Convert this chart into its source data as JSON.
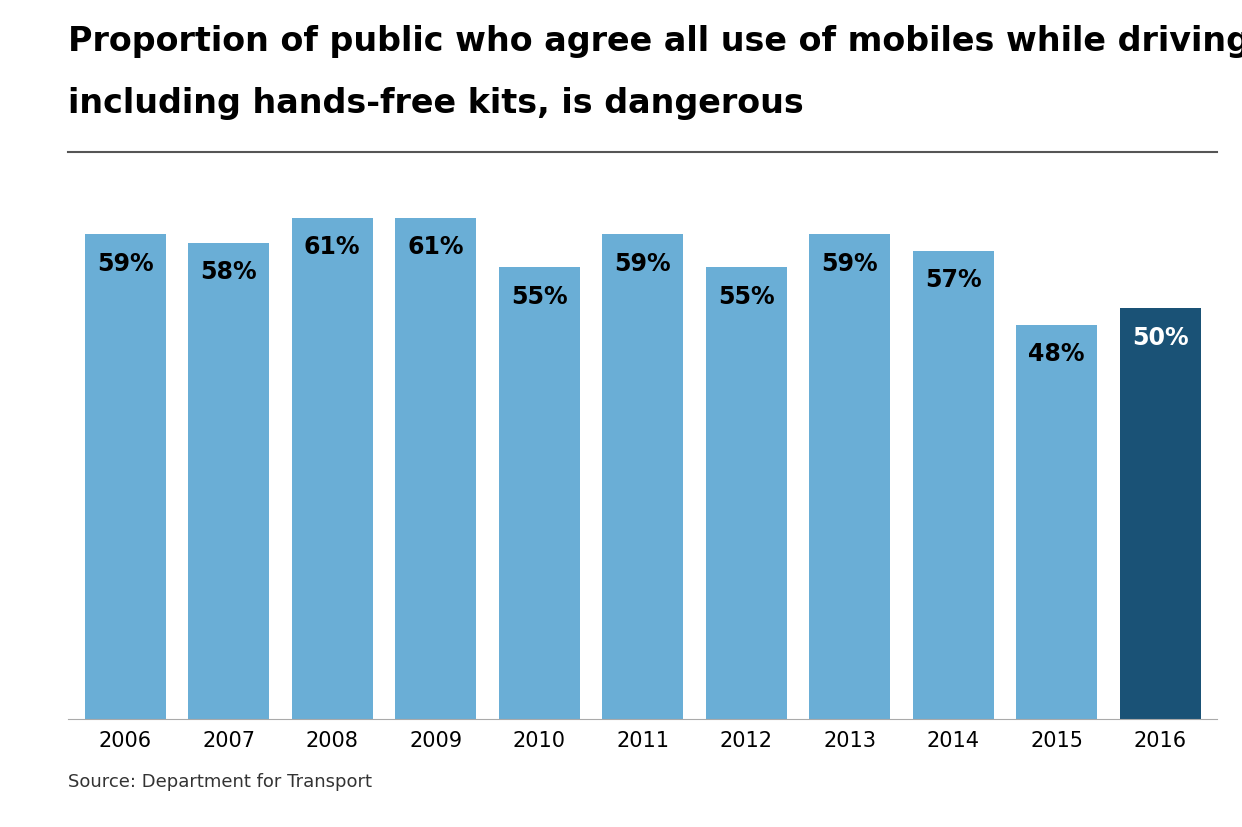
{
  "title_line1": "Proportion of public who agree all use of mobiles while driving,",
  "title_line2": "including hands-free kits, is dangerous",
  "years": [
    "2006",
    "2007",
    "2008",
    "2009",
    "2010",
    "2011",
    "2012",
    "2013",
    "2014",
    "2015",
    "2016"
  ],
  "values": [
    59,
    58,
    61,
    61,
    55,
    59,
    55,
    59,
    57,
    48,
    50
  ],
  "bar_colors": [
    "#6aaed6",
    "#6aaed6",
    "#6aaed6",
    "#6aaed6",
    "#6aaed6",
    "#6aaed6",
    "#6aaed6",
    "#6aaed6",
    "#6aaed6",
    "#6aaed6",
    "#1a5276"
  ],
  "label_colors": [
    "#000000",
    "#000000",
    "#000000",
    "#000000",
    "#000000",
    "#000000",
    "#000000",
    "#000000",
    "#000000",
    "#000000",
    "#ffffff"
  ],
  "source_text": "Source: Department for Transport",
  "ylim": [
    0,
    68
  ],
  "background_color": "#ffffff",
  "title_fontsize": 24,
  "label_fontsize": 17,
  "tick_fontsize": 15,
  "source_fontsize": 13,
  "pa_box_color": "#cc2222",
  "pa_text_color": "#ffffff"
}
